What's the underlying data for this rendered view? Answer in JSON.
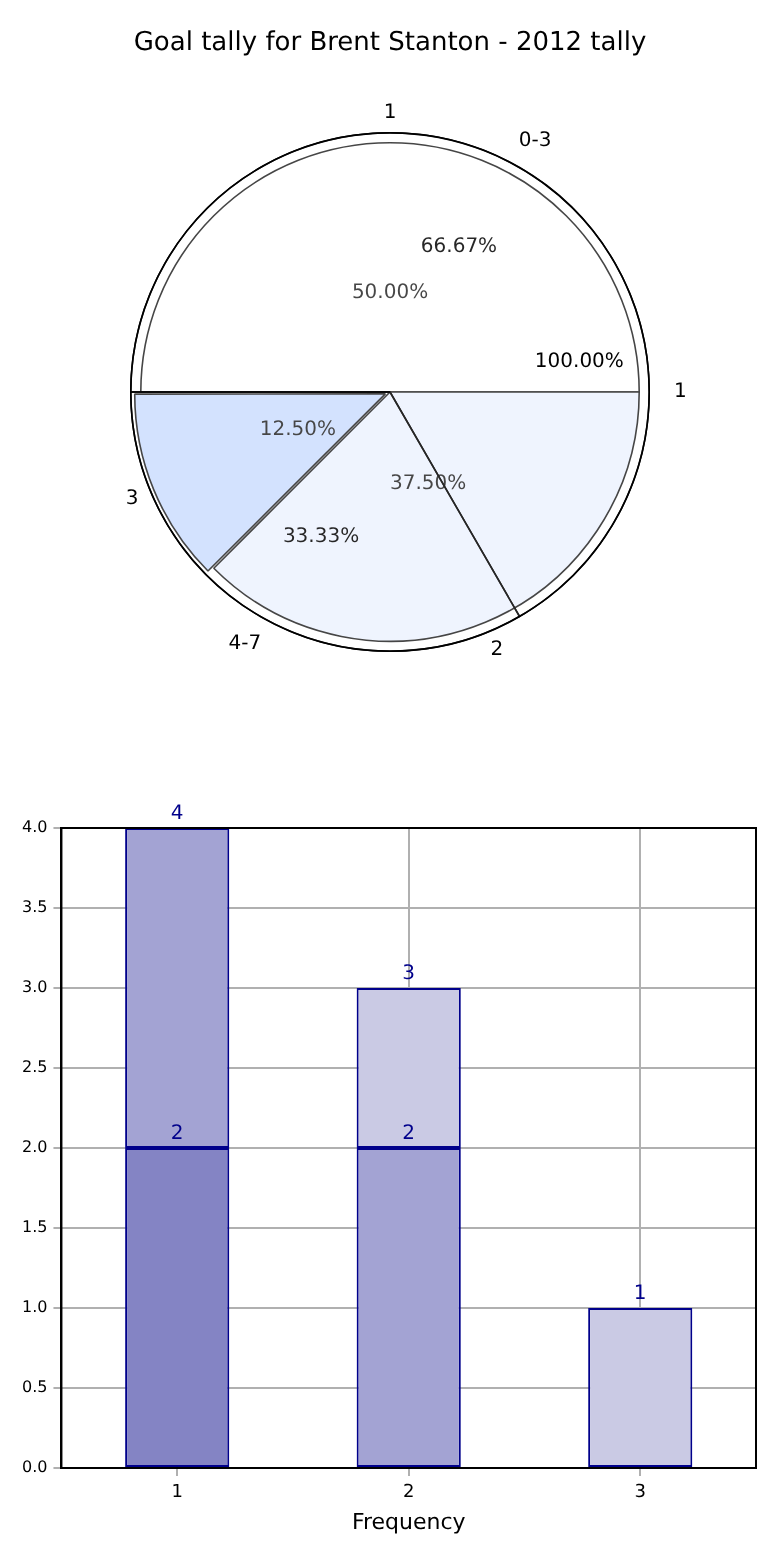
{
  "chart_data": [
    {
      "type": "pie",
      "title": "Goal tally for Brent Stanton - 2012 tally",
      "categories": [
        "1",
        "2",
        "3"
      ],
      "values": [
        50,
        37.5,
        12.5
      ],
      "colors": [
        "#ffffff",
        "#eaf0fe",
        "#c4d8fe"
      ],
      "value_labels": [
        "50.00%",
        "37.50%",
        "12.50%"
      ]
    },
    {
      "type": "pie",
      "categories": [
        "0-3",
        "4-7"
      ],
      "values": [
        66.67,
        33.33
      ],
      "colors": [
        "#ffffff",
        "#ffffff"
      ],
      "value_labels": [
        "66.67%",
        "33.33%"
      ]
    },
    {
      "type": "pie",
      "categories": [
        "1"
      ],
      "values": [
        100
      ],
      "colors": [
        "#ffffff"
      ],
      "value_labels": [
        "100.00%"
      ]
    },
    {
      "type": "bar",
      "categories": [
        "1",
        "2",
        "3"
      ],
      "xlabel": "Frequency",
      "ylim": [
        0,
        4
      ],
      "yticks": [
        {
          "value": 0,
          "label": "0.0"
        },
        {
          "value": 0.5,
          "label": "0.5"
        },
        {
          "value": 1,
          "label": "1.0"
        },
        {
          "value": 1.5,
          "label": "1.5"
        },
        {
          "value": 2,
          "label": "2.0"
        },
        {
          "value": 2.5,
          "label": "2.5"
        },
        {
          "value": 3,
          "label": "3.0"
        },
        {
          "value": 3.5,
          "label": "3.5"
        },
        {
          "value": 4,
          "label": "4.0"
        }
      ],
      "grid": true,
      "stacked": true,
      "totals": [
        "4",
        "3",
        "1"
      ],
      "series": [
        {
          "values": [
            2,
            2,
            null
          ],
          "colors": [
            "#8484c4",
            "#a3a3d3",
            null
          ],
          "value_labels": [
            "2",
            "2",
            null
          ]
        },
        {
          "values": [
            2,
            1,
            1
          ],
          "colors": [
            "#a3a3d3",
            "#cacae4",
            "#cacae4"
          ]
        }
      ]
    }
  ]
}
